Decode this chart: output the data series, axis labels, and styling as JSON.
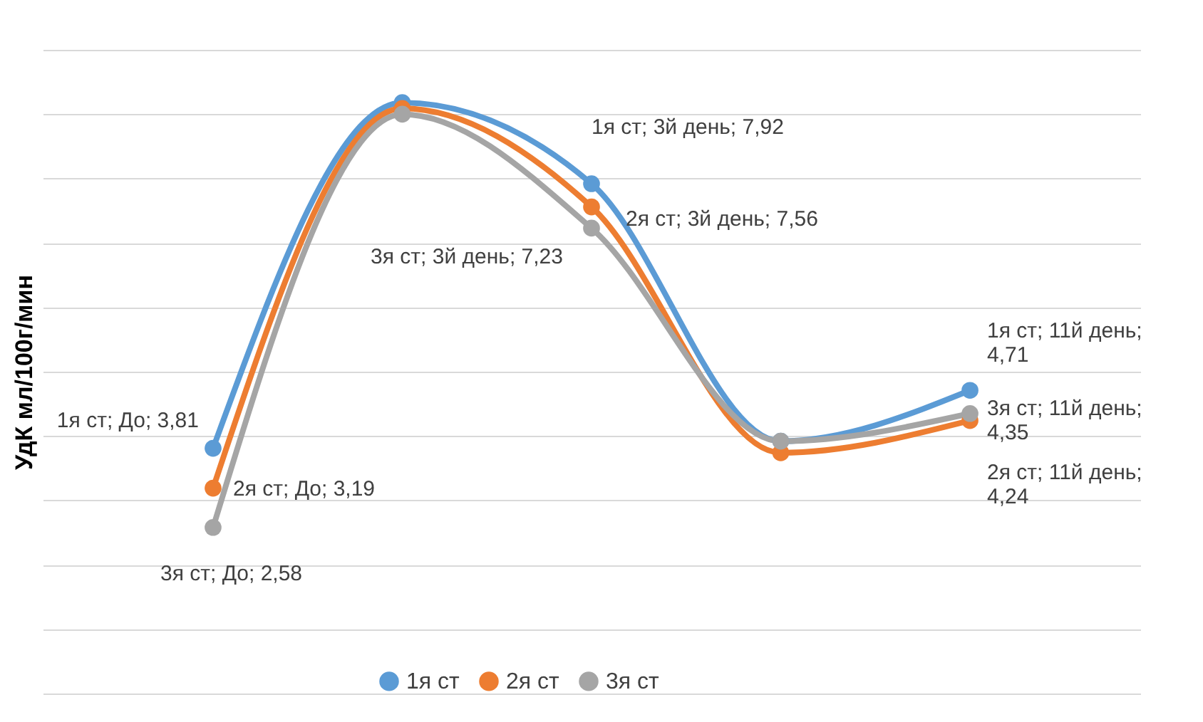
{
  "chart_data": {
    "type": "line",
    "ylabel": "УдК мл/100г/мин",
    "categories": [
      null,
      null,
      null,
      null,
      null
    ],
    "series": [
      {
        "name": "1я ст",
        "color": "#5b9bd5",
        "values": [
          3.81,
          9.18,
          7.92,
          3.92,
          4.71
        ],
        "value_labels": [
          "1я ст; До; 3,81",
          null,
          "1я ст; 3й день; 7,92",
          null,
          "1я ст; 11й день; 4,71"
        ]
      },
      {
        "name": "2я ст",
        "color": "#ed7d31",
        "values": [
          3.19,
          9.09,
          7.56,
          3.74,
          4.24
        ],
        "value_labels": [
          "2я ст; До; 3,19",
          null,
          "2я ст; 3й день; 7,56",
          null,
          "2я ст; 11й день; 4,24"
        ]
      },
      {
        "name": "3я ст",
        "color": "#a5a5a5",
        "values": [
          2.58,
          9.0,
          7.23,
          3.92,
          4.35
        ],
        "value_labels": [
          "3я ст; До; 2,58",
          null,
          "3я ст; 3й день; 7,23",
          null,
          "3я ст; 11й день; 4,35"
        ]
      }
    ],
    "ylim": [
      0,
      10
    ],
    "yticks": [
      {
        "value": 0,
        "label": null
      },
      {
        "value": 1,
        "label": null
      },
      {
        "value": 2,
        "label": null
      },
      {
        "value": 3,
        "label": null
      },
      {
        "value": 4,
        "label": null
      },
      {
        "value": 5,
        "label": null
      },
      {
        "value": 6,
        "label": null
      },
      {
        "value": 7,
        "label": null
      },
      {
        "value": 8,
        "label": null
      },
      {
        "value": 9,
        "label": null
      },
      {
        "value": 10,
        "label": null
      }
    ],
    "grid": "y",
    "tick_labels": false,
    "legend": "bottom",
    "marker": "circle",
    "line_style": "solid"
  }
}
